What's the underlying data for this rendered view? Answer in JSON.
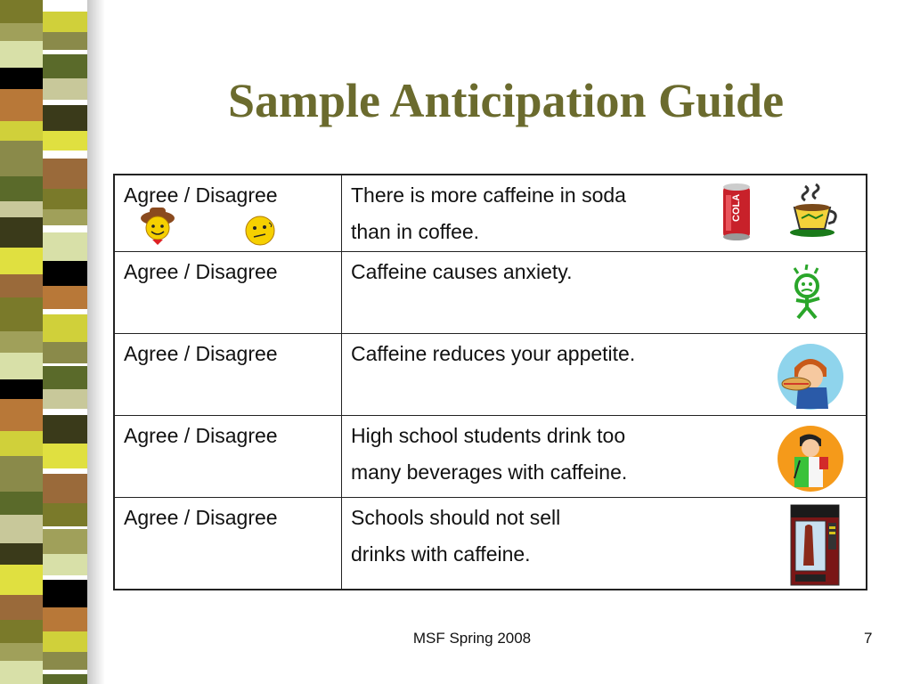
{
  "slide": {
    "title": "Sample Anticipation Guide",
    "footer": "MSF Spring 2008",
    "page_number": "7"
  },
  "rows": [
    {
      "choice": "Agree / Disagree",
      "statement": "There is more caffeine in soda\nthan in coffee.",
      "icons": [
        "cowboy-smiley-icon",
        "thinking-smiley-icon",
        "cola-can-icon",
        "steaming-coffee-cup-icon"
      ]
    },
    {
      "choice": "Agree / Disagree",
      "statement": "Caffeine causes anxiety.",
      "icons": [
        "anxious-person-icon"
      ]
    },
    {
      "choice": "Agree / Disagree",
      "statement": "Caffeine reduces your appetite.",
      "icons": [
        "eating-sandwich-icon"
      ]
    },
    {
      "choice": "Agree / Disagree",
      "statement": "High school students drink too\nmany beverages with caffeine.",
      "icons": [
        "student-drinking-icon"
      ]
    },
    {
      "choice": "Agree / Disagree",
      "statement": "Schools should not sell\ndrinks with caffeine.",
      "icons": [
        "vending-machine-icon"
      ]
    }
  ]
}
